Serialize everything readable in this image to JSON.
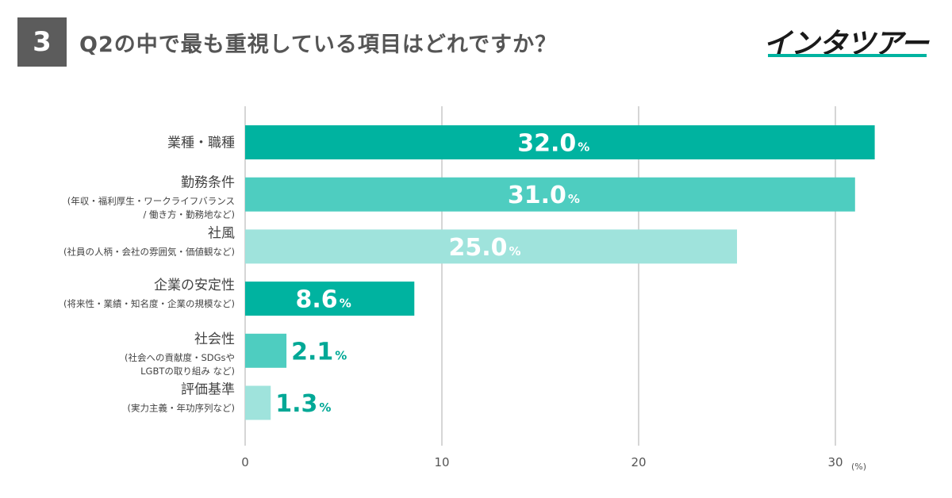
{
  "header": {
    "number": "3",
    "question": "Q2の中で最も重視している項目はどれですか？",
    "logo": "インタツアー"
  },
  "colors": {
    "dark": "#00b3a0",
    "mid": "#4ecdc0",
    "light": "#9fe3dc",
    "value_text_outside": "#00a896",
    "grid": "#d6d6d6"
  },
  "chart_data": {
    "type": "bar",
    "orientation": "horizontal",
    "categories": [
      {
        "label": "業種・職種",
        "sub": []
      },
      {
        "label": "勤務条件",
        "sub": [
          "(年収・福利厚生・ワークライフバランス",
          "/ 働き方・勤務地など)"
        ]
      },
      {
        "label": "社風",
        "sub": [
          "(社員の人柄・会社の雰囲気・価値観など)"
        ]
      },
      {
        "label": "企業の安定性",
        "sub": [
          "(将来性・業績・知名度・企業の規模など)"
        ]
      },
      {
        "label": "社会性",
        "sub": [
          "(社会への貢献度・SDGsや",
          "LGBTの取り組み など)"
        ]
      },
      {
        "label": "評価基準",
        "sub": [
          "(実力主義・年功序列など)"
        ]
      }
    ],
    "values": [
      32.0,
      31.0,
      25.0,
      8.6,
      2.1,
      1.3
    ],
    "value_labels": [
      "32.0",
      "31.0",
      "25.0",
      "8.6",
      "2.1",
      "1.3"
    ],
    "unit": "%",
    "xlim": [
      0,
      33
    ],
    "xticks": [
      0,
      10,
      20,
      30
    ],
    "xunit": "(%)",
    "grid": true
  }
}
